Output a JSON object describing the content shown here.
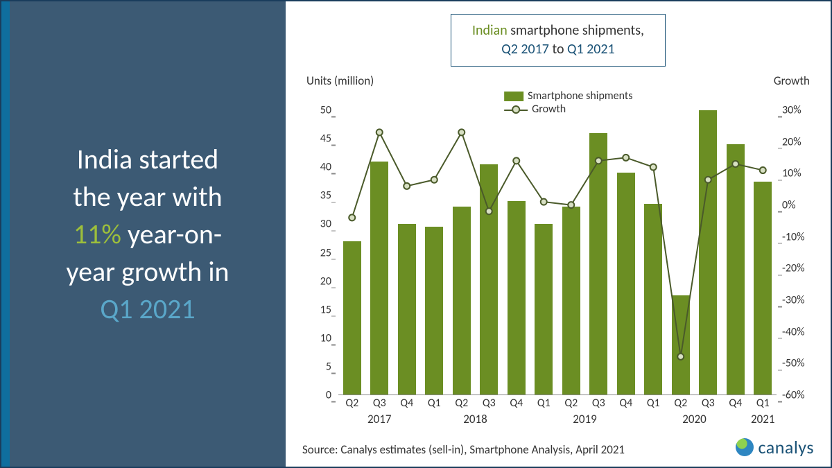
{
  "headline": {
    "l1": "India started",
    "l2": "the year with",
    "pct": "11%",
    "l3_rest": " year-on-",
    "l4": "year growth in",
    "q": "Q1 2021",
    "accent1_color": "#9dbf3b",
    "accent2_color": "#5aa7c9",
    "text_color": "#ffffff",
    "fontsize": 40
  },
  "left_panel": {
    "bg_color_overlay": "rgba(26,61,92,0.85)",
    "accent_bar_color": "#0f6e9e"
  },
  "chart_title": {
    "word_indian": "Indian",
    "rest1": " smartphone shipments,",
    "q_from": "Q2 2017",
    "mid": " to ",
    "q_to": "Q1 2021",
    "border_color": "#1a5276",
    "indian_color": "#6b8e23",
    "q_color": "#1a5276",
    "fontsize": 20
  },
  "axis_titles": {
    "left": "Units (million)",
    "right": "Growth",
    "fontsize": 17,
    "color": "#333333"
  },
  "legend": {
    "bar_label": "Smartphone shipments",
    "line_label": "Growth",
    "bar_color": "#6b8e23",
    "line_color": "#4a5a2a",
    "marker_fill": "#d8e0c4",
    "fontsize": 16
  },
  "chart": {
    "type": "bar+line",
    "categories": [
      "Q2",
      "Q3",
      "Q4",
      "Q1",
      "Q2",
      "Q3",
      "Q4",
      "Q1",
      "Q2",
      "Q3",
      "Q4",
      "Q1",
      "Q2",
      "Q3",
      "Q4",
      "Q1"
    ],
    "year_groups": [
      {
        "label": "2017",
        "start_index": 0,
        "span": 3
      },
      {
        "label": "2018",
        "start_index": 3,
        "span": 4
      },
      {
        "label": "2019",
        "start_index": 7,
        "span": 4
      },
      {
        "label": "2020",
        "start_index": 11,
        "span": 4
      },
      {
        "label": "2021",
        "start_index": 15,
        "span": 1
      }
    ],
    "shipments": [
      27,
      41,
      30,
      29.5,
      33,
      40.5,
      34,
      30,
      33,
      46,
      39,
      33.5,
      17.5,
      50,
      44,
      37.5
    ],
    "growth_pct": [
      -4,
      23,
      6,
      8,
      23,
      -2,
      14,
      1,
      0,
      14,
      15,
      12,
      -48,
      8,
      13,
      11
    ],
    "bar_color": "#6b8e23",
    "bar_width_ratio": 0.66,
    "line_color": "#4a5a2a",
    "line_width": 2,
    "marker_fill": "#d8e0c4",
    "marker_stroke": "#4a5a2a",
    "marker_radius": 4.5,
    "y_left": {
      "min": 0,
      "max": 50,
      "step": 5
    },
    "y_right": {
      "min": -60,
      "max": 30,
      "step": 10,
      "suffix": "%"
    },
    "axis_color": "#888888",
    "tick_fontsize": 16,
    "tick_color": "#333333",
    "background_color": "#ffffff"
  },
  "source": {
    "text": "Source: Canalys estimates (sell-in), Smartphone Analysis, April 2021",
    "fontsize": 17,
    "color": "#333333"
  },
  "logo": {
    "text": "canalys",
    "color": "#1a5276",
    "fontsize": 26
  }
}
